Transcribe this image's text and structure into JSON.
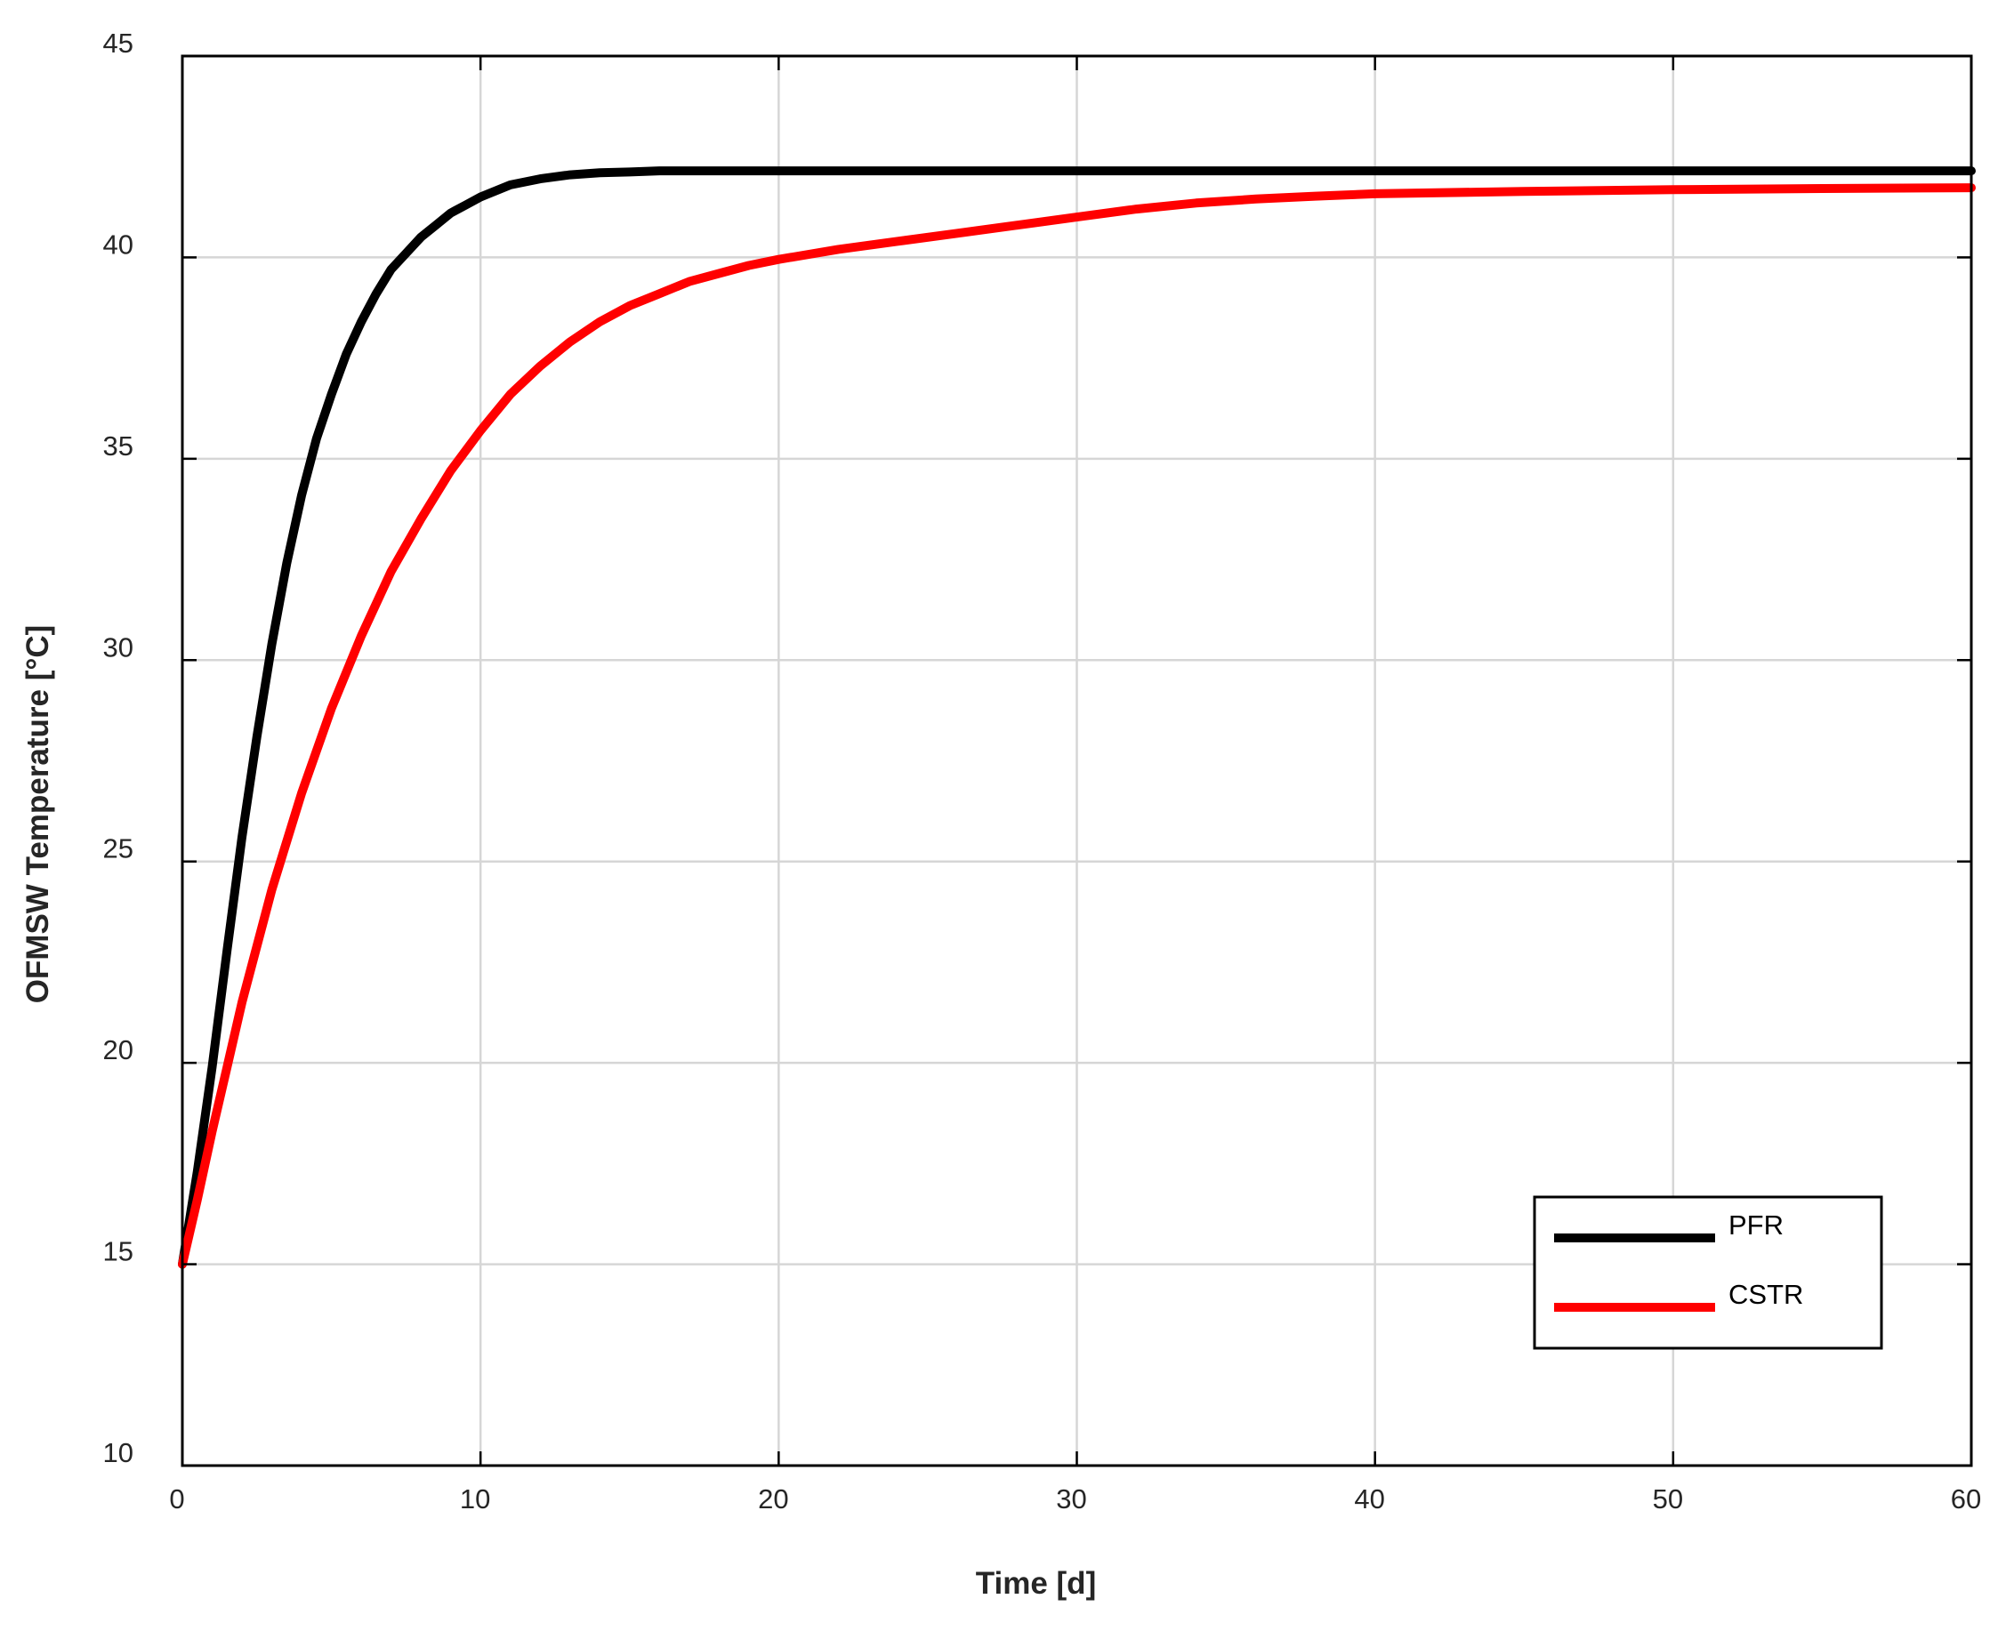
{
  "chart_data": {
    "type": "line",
    "xlabel": "Time [d]",
    "ylabel": "OFMSW Temperature [°C]",
    "xlim": [
      0,
      60
    ],
    "ylim": [
      10,
      45
    ],
    "xticks": [
      0,
      10,
      20,
      30,
      40,
      50,
      60
    ],
    "yticks": [
      10,
      15,
      20,
      25,
      30,
      35,
      40,
      45
    ],
    "grid": true,
    "legend": {
      "position": "bottom-right",
      "entries": [
        "PFR",
        "CSTR"
      ]
    },
    "series": [
      {
        "name": "PFR",
        "color": "#000000",
        "x": [
          0,
          0.5,
          1,
          1.5,
          2,
          2.5,
          3,
          3.5,
          4,
          4.5,
          5,
          5.5,
          6,
          6.5,
          7,
          7.5,
          8,
          8.5,
          9,
          9.5,
          10,
          11,
          12,
          13,
          14,
          15,
          16,
          18,
          20,
          25,
          30,
          35,
          40,
          45,
          50,
          55,
          60
        ],
        "y": [
          15,
          17.3,
          19.9,
          22.8,
          25.6,
          28.1,
          30.4,
          32.4,
          34.1,
          35.5,
          36.6,
          37.6,
          38.4,
          39.1,
          39.7,
          40.1,
          40.5,
          40.8,
          41.1,
          41.3,
          41.5,
          41.8,
          41.95,
          42.05,
          42.1,
          42.12,
          42.15,
          42.15,
          42.15,
          42.15,
          42.15,
          42.15,
          42.15,
          42.15,
          42.15,
          42.15,
          42.15
        ]
      },
      {
        "name": "CSTR",
        "color": "#ff0000",
        "x": [
          0,
          0.5,
          1,
          1.5,
          2,
          3,
          4,
          5,
          6,
          7,
          8,
          9,
          10,
          11,
          12,
          13,
          14,
          15,
          16,
          17,
          18,
          19,
          20,
          22,
          24,
          26,
          28,
          30,
          32,
          34,
          36,
          38,
          40,
          45,
          50,
          55,
          60
        ],
        "y": [
          15,
          16.6,
          18.3,
          19.9,
          21.5,
          24.3,
          26.7,
          28.8,
          30.6,
          32.2,
          33.5,
          34.7,
          35.7,
          36.6,
          37.3,
          37.9,
          38.4,
          38.8,
          39.1,
          39.4,
          39.6,
          39.8,
          39.95,
          40.2,
          40.4,
          40.6,
          40.8,
          41.0,
          41.2,
          41.35,
          41.45,
          41.52,
          41.58,
          41.64,
          41.68,
          41.71,
          41.73
        ]
      }
    ]
  }
}
